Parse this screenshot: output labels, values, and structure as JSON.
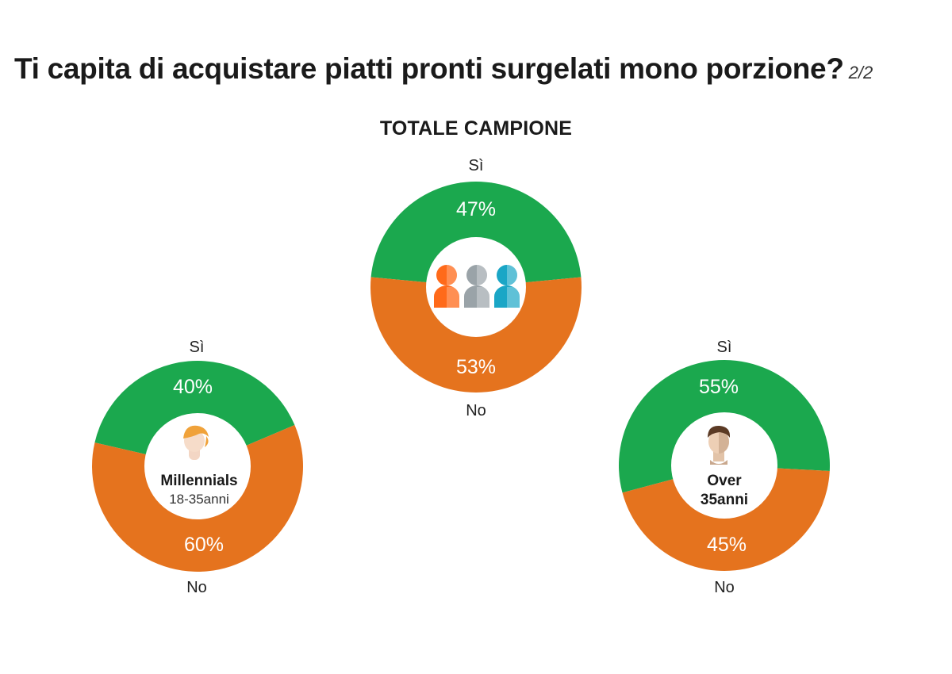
{
  "title": "Ti capita di acquistare piatti pronti surgelati mono porzione?",
  "page_indicator": "2/2",
  "subtitle": "TOTALE CAMPIONE",
  "colors": {
    "yes": "#1ba84e",
    "no": "#e5731e",
    "person1": "#ff6a1a",
    "person2": "#9aa3a8",
    "person3": "#1aa6c6"
  },
  "chart_data": [
    {
      "type": "pie",
      "name": "totale",
      "title": "TOTALE CAMPIONE",
      "categories": [
        "Sì",
        "No"
      ],
      "values": [
        47,
        53
      ],
      "value_labels": [
        "47%",
        "53%"
      ],
      "center_label": "",
      "center_sublabel": "",
      "icon": "group-people-icon"
    },
    {
      "type": "pie",
      "name": "millennials",
      "title": "",
      "categories": [
        "Sì",
        "No"
      ],
      "values": [
        40,
        60
      ],
      "value_labels": [
        "40%",
        "60%"
      ],
      "center_label": "Millennials",
      "center_sublabel": "18-35anni",
      "icon": "young-person-icon"
    },
    {
      "type": "pie",
      "name": "over35",
      "title": "",
      "categories": [
        "Sì",
        "No"
      ],
      "values": [
        55,
        45
      ],
      "value_labels": [
        "55%",
        "45%"
      ],
      "center_label": "Over",
      "center_sublabel": "35anni",
      "icon": "adult-person-icon"
    }
  ]
}
